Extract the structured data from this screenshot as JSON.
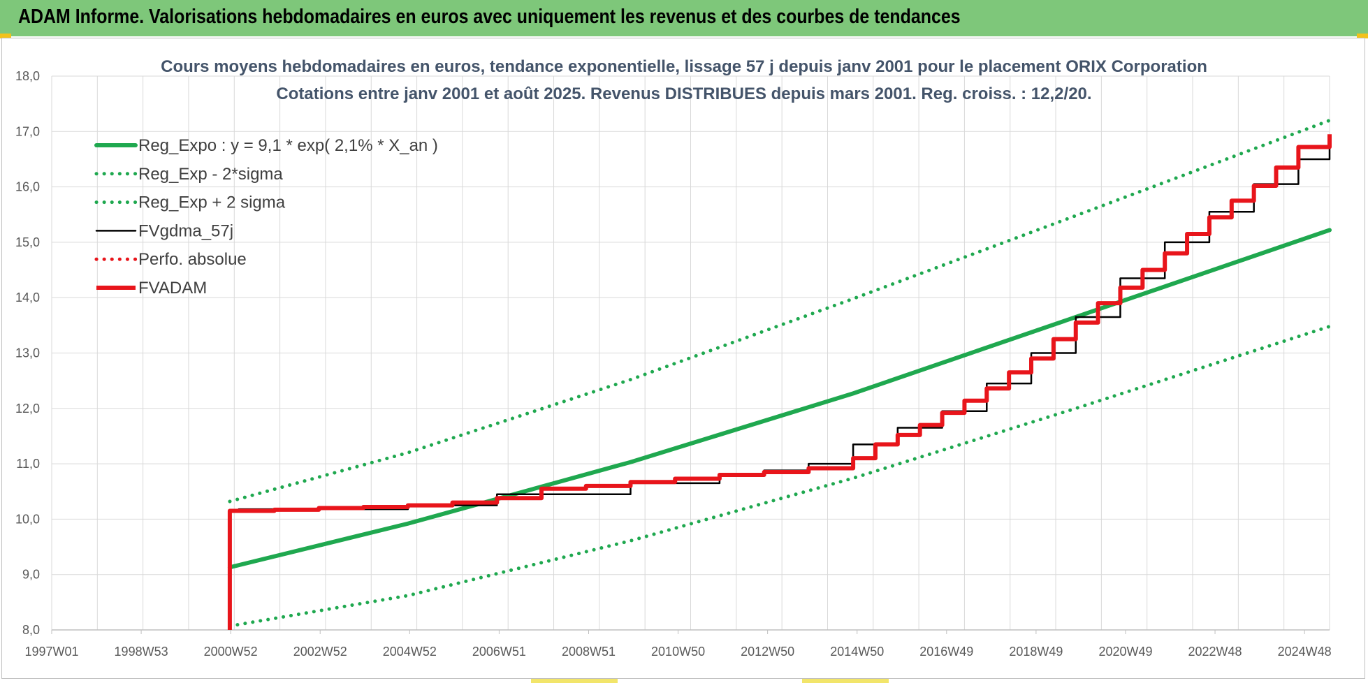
{
  "header": {
    "title": "ADAM Informe. Valorisations hebdomadaires en euros avec uniquement les revenus et des courbes de tendances"
  },
  "colors": {
    "banner": "#7ec77a",
    "trend": "#1fa84f",
    "fvgdma": "#000000",
    "fvadam": "#e8151b",
    "grid": "#d9d9d9"
  },
  "chart_data": {
    "type": "line",
    "title": [
      "Cours moyens hebdomadaires en euros, tendance exponentielle, lissage 57 j depuis janv 2001 pour le placement ORIX Corporation",
      "Cotations entre janv 2001 et août 2025.  Revenus DISTRIBUES depuis mars 2001. Reg. croiss. : 12,2/20."
    ],
    "x_tick_labels": [
      "1997W01",
      "1998W53",
      "2000W52",
      "2002W52",
      "2004W52",
      "2006W51",
      "2008W51",
      "2010W50",
      "2012W50",
      "2014W50",
      "2016W49",
      "2018W49",
      "2020W49",
      "2022W48",
      "2024W48"
    ],
    "x_range": [
      1997.0,
      2025.7
    ],
    "ylim": [
      8.0,
      18.0
    ],
    "y_ticks": [
      "8,0",
      "9,0",
      "10,0",
      "11,0",
      "12,0",
      "13,0",
      "14,0",
      "15,0",
      "16,0",
      "17,0",
      "18,0"
    ],
    "grid": true,
    "legend_position": "top-left",
    "series": [
      {
        "name": "Reg_Expo : y = 9,1 * exp( 2,1% *  X_an )",
        "style": "solid",
        "color": "#1fa84f",
        "x": [
          2001.0,
          2005.0,
          2010.0,
          2015.0,
          2020.0,
          2025.7
        ],
        "y": [
          9.13,
          9.92,
          11.03,
          12.27,
          13.65,
          15.22
        ]
      },
      {
        "name": "Reg_Exp - 2*sigma",
        "style": "dotted",
        "color": "#1fa84f",
        "x": [
          2001.0,
          2005.0,
          2010.0,
          2015.0,
          2020.0,
          2025.7
        ],
        "y": [
          8.07,
          8.62,
          9.61,
          10.74,
          12.0,
          13.48
        ]
      },
      {
        "name": "Reg_Exp + 2 sigma",
        "style": "dotted",
        "color": "#1fa84f",
        "x": [
          2001.0,
          2005.0,
          2010.0,
          2015.0,
          2020.0,
          2025.7
        ],
        "y": [
          10.32,
          11.2,
          12.52,
          13.98,
          15.48,
          17.2
        ]
      },
      {
        "name": "FVgdma_57j",
        "style": "solid-thin",
        "color": "#000000",
        "x": [
          2001.0,
          2001.2,
          2005.0,
          2007.0,
          2010.0,
          2012.0,
          2013.0,
          2014.0,
          2015.0,
          2016.0,
          2017.0,
          2018.0,
          2019.0,
          2020.0,
          2021.0,
          2022.0,
          2023.0,
          2024.0,
          2025.0,
          2025.7
        ],
        "y": [
          10.16,
          10.18,
          10.25,
          10.45,
          10.65,
          10.8,
          10.88,
          11.0,
          11.35,
          11.65,
          11.95,
          12.45,
          13.0,
          13.65,
          14.35,
          15.0,
          15.55,
          16.05,
          16.5,
          16.92
        ]
      },
      {
        "name": "Perfo. absolue",
        "style": "dotted",
        "color": "#e8151b",
        "x": [],
        "y": []
      },
      {
        "name": "FVADAM",
        "style": "solid-thick",
        "color": "#e8151b",
        "x": [
          2001.0,
          2001.0,
          2002.0,
          2003.0,
          2004.0,
          2005.0,
          2006.0,
          2007.0,
          2008.0,
          2009.0,
          2010.0,
          2011.0,
          2012.0,
          2013.0,
          2014.0,
          2015.0,
          2015.5,
          2016.0,
          2016.5,
          2017.0,
          2017.5,
          2018.0,
          2018.5,
          2019.0,
          2019.5,
          2020.0,
          2020.5,
          2021.0,
          2021.5,
          2022.0,
          2022.5,
          2023.0,
          2023.5,
          2024.0,
          2024.5,
          2025.0,
          2025.7
        ],
        "y": [
          8.0,
          10.15,
          10.17,
          10.2,
          10.22,
          10.25,
          10.3,
          10.38,
          10.55,
          10.6,
          10.67,
          10.73,
          10.8,
          10.85,
          10.92,
          11.1,
          11.35,
          11.52,
          11.7,
          11.92,
          12.14,
          12.36,
          12.65,
          12.9,
          13.25,
          13.55,
          13.9,
          14.18,
          14.5,
          14.8,
          15.15,
          15.45,
          15.75,
          16.02,
          16.35,
          16.72,
          16.95
        ]
      }
    ]
  }
}
